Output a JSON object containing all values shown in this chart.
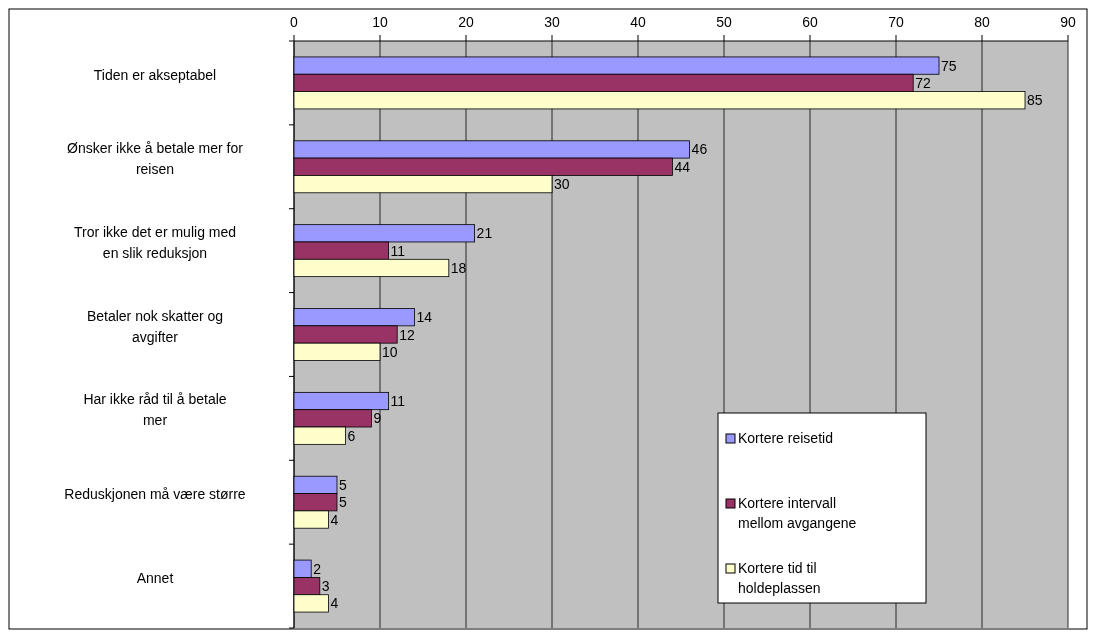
{
  "chart_data": {
    "type": "bar",
    "orientation": "horizontal",
    "categories": [
      "Tiden er akseptabel",
      "Ønsker ikke å betale mer for reisen",
      "Tror ikke det er mulig med en slik reduksjon",
      "Betaler nok skatter og avgifter",
      "Har ikke råd til å betale mer",
      "Reduskjonen må være større",
      "Annet"
    ],
    "series": [
      {
        "name": "Kortere reisetid",
        "color": "#9999ff",
        "values": [
          75,
          46,
          21,
          14,
          11,
          5,
          2
        ]
      },
      {
        "name": "Kortere intervall mellom avgangene",
        "color": "#993366",
        "values": [
          72,
          44,
          11,
          12,
          9,
          5,
          3
        ]
      },
      {
        "name": "Kortere tid til holdeplassen",
        "color": "#ffffcc",
        "values": [
          85,
          30,
          18,
          10,
          6,
          4,
          4
        ]
      }
    ],
    "xlim": [
      0,
      90
    ],
    "xticks": [
      0,
      10,
      20,
      30,
      40,
      50,
      60,
      70,
      80,
      90
    ],
    "grid": "x",
    "data_labels": true,
    "legend": "right"
  }
}
